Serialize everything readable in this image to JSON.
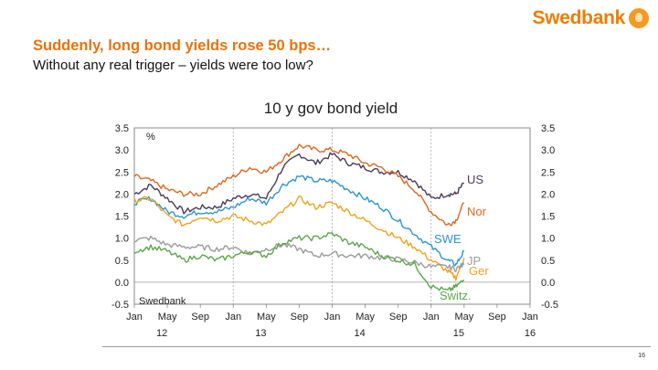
{
  "brand": {
    "name": "Swedbank",
    "color": "#f07c00"
  },
  "slide": {
    "title": "Suddenly, long bond yields rose 50 bps…",
    "subtitle": "Without any real trigger – yields were too low?",
    "page_number": "16"
  },
  "chart_data": {
    "type": "line",
    "title": "10 y gov bond yield",
    "unit_label": "%",
    "source_label": "Swedbank",
    "ylim": [
      -0.5,
      3.5
    ],
    "yticks": [
      "3.5",
      "3.0",
      "2.5",
      "2.0",
      "1.5",
      "1.0",
      "0.5",
      "0.0",
      "-0.5"
    ],
    "x_month_ticks": [
      "Jan",
      "May",
      "Sep",
      "Jan",
      "May",
      "Sep",
      "Jan",
      "May",
      "Sep",
      "Jan",
      "May",
      "Sep",
      "Jan"
    ],
    "x_year_labels": [
      "12",
      "13",
      "14",
      "15",
      "16"
    ],
    "x_range": [
      "2012-01",
      "2016-01"
    ],
    "grid": "vertical at each January",
    "x": [
      "2012-01",
      "2012-03",
      "2012-05",
      "2012-07",
      "2012-09",
      "2012-11",
      "2013-01",
      "2013-03",
      "2013-05",
      "2013-07",
      "2013-09",
      "2013-11",
      "2014-01",
      "2014-03",
      "2014-05",
      "2014-07",
      "2014-09",
      "2014-11",
      "2015-01",
      "2015-03",
      "2015-04",
      "2015-05"
    ],
    "series": [
      {
        "name": "US",
        "color": "#4b3a5e",
        "values": [
          2.0,
          2.2,
          1.9,
          1.6,
          1.7,
          1.7,
          1.9,
          2.0,
          1.9,
          2.6,
          2.9,
          2.7,
          2.9,
          2.7,
          2.6,
          2.5,
          2.5,
          2.3,
          1.9,
          2.0,
          2.0,
          2.25
        ]
      },
      {
        "name": "Nor",
        "color": "#e0661a",
        "values": [
          2.4,
          2.3,
          2.1,
          2.0,
          2.0,
          2.2,
          2.4,
          2.6,
          2.5,
          2.8,
          3.1,
          3.0,
          3.0,
          2.9,
          2.7,
          2.6,
          2.4,
          2.1,
          1.6,
          1.3,
          1.4,
          1.8
        ]
      },
      {
        "name": "SWE",
        "color": "#2b96d3",
        "values": [
          1.8,
          1.9,
          1.6,
          1.5,
          1.6,
          1.6,
          1.7,
          1.9,
          1.8,
          2.2,
          2.4,
          2.3,
          2.3,
          2.1,
          1.9,
          1.7,
          1.4,
          1.1,
          0.8,
          0.5,
          0.4,
          0.7
        ]
      },
      {
        "name": "Ger",
        "color": "#f3a21b",
        "values": [
          1.85,
          1.9,
          1.5,
          1.3,
          1.5,
          1.4,
          1.5,
          1.4,
          1.3,
          1.6,
          1.9,
          1.7,
          1.8,
          1.6,
          1.4,
          1.2,
          1.0,
          0.8,
          0.5,
          0.25,
          0.1,
          0.55
        ]
      },
      {
        "name": "JP",
        "color": "#9b9b9b",
        "values": [
          0.95,
          1.0,
          0.85,
          0.8,
          0.8,
          0.75,
          0.8,
          0.65,
          0.75,
          0.85,
          0.75,
          0.6,
          0.65,
          0.6,
          0.6,
          0.55,
          0.52,
          0.45,
          0.35,
          0.35,
          0.3,
          0.4
        ]
      },
      {
        "name": "Switz.",
        "color": "#5aa84a",
        "values": [
          0.7,
          0.8,
          0.7,
          0.5,
          0.6,
          0.5,
          0.6,
          0.7,
          0.6,
          0.9,
          1.0,
          1.0,
          1.1,
          0.9,
          0.8,
          0.6,
          0.5,
          0.4,
          -0.1,
          -0.2,
          -0.1,
          0.05
        ]
      }
    ]
  }
}
